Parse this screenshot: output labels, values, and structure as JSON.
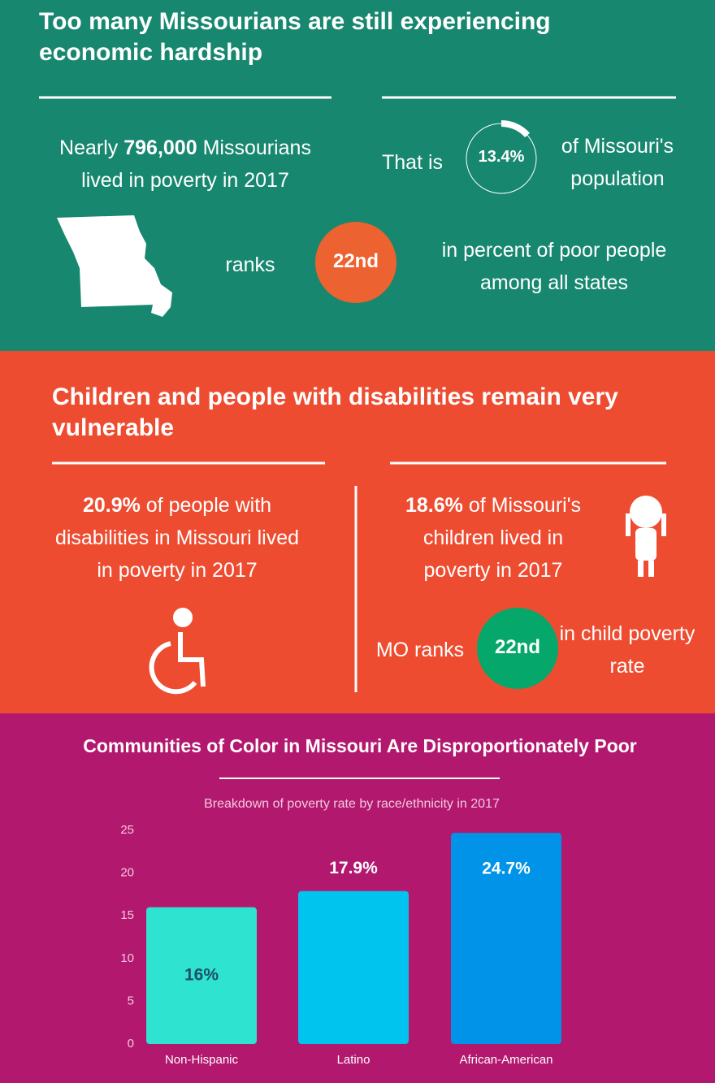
{
  "poverty": {
    "title": "Too many Missourians are still experiencing economic hardship",
    "count": {
      "prefix": "Nearly",
      "value": "796,000",
      "suffix": "Missourians lived in poverty in 2017"
    },
    "share": {
      "prefix": "That is",
      "value": 13.4,
      "label": "13.4%",
      "suffix": "of Missouri's population"
    },
    "rank": {
      "prefix": "ranks",
      "value": "22nd",
      "suffix": "in percent of poor people among all states"
    }
  },
  "vulnerable": {
    "title": "Children and people with disabilities remain very vulnerable",
    "disabilities": {
      "value": "20.9%",
      "suffix": "of people with disabilities in Missouri lived in poverty in 2017"
    },
    "children": {
      "value": "18.6%",
      "suffix": "of Missouri's children lived in poverty in 2017"
    },
    "child_rank": {
      "prefix": "MO ranks",
      "value": "22nd",
      "suffix": "in child poverty rate"
    }
  },
  "chart_data": {
    "type": "bar",
    "title": "Communities of Color in Missouri Are Disproportionately Poor",
    "subtitle": "Breakdown of poverty rate by race/ethnicity in 2017",
    "categories": [
      "Non-Hispanic",
      "Latino",
      "African-American"
    ],
    "values": [
      16,
      17.9,
      24.7
    ],
    "value_labels": [
      "16%",
      "17.9%",
      "24.7%"
    ],
    "colors": [
      "#2ee3cf",
      "#00c4ee",
      "#0093e8"
    ],
    "ylim": [
      0,
      25
    ],
    "yticks": [
      0,
      5,
      10,
      15,
      20,
      25
    ],
    "grid": false
  }
}
